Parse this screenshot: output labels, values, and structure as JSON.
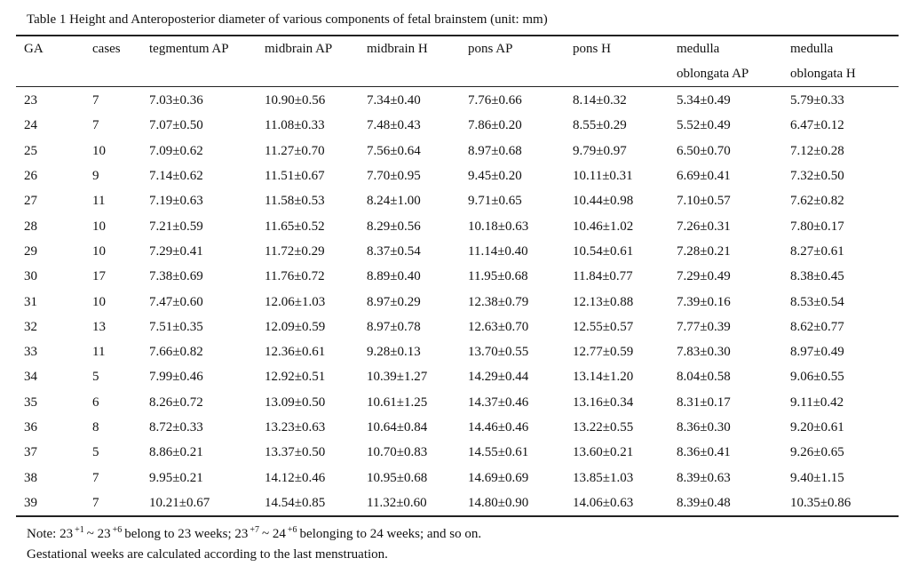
{
  "title": "Table 1 Height and Anteroposterior diameter of various components of fetal brainstem (unit: mm)",
  "table": {
    "headers": [
      "GA",
      "cases",
      "tegmentum AP",
      "midbrain AP",
      "midbrain H",
      "pons AP",
      "pons H",
      "medulla oblongata AP",
      "medulla oblongata H"
    ],
    "rows": [
      [
        23,
        7,
        "7.03±0.36",
        "10.90±0.56",
        "7.34±0.40",
        "7.76±0.66",
        "8.14±0.32",
        "5.34±0.49",
        "5.79±0.33"
      ],
      [
        24,
        7,
        "7.07±0.50",
        "11.08±0.33",
        "7.48±0.43",
        "7.86±0.20",
        "8.55±0.29",
        "5.52±0.49",
        "6.47±0.12"
      ],
      [
        25,
        10,
        "7.09±0.62",
        "11.27±0.70",
        "7.56±0.64",
        "8.97±0.68",
        "9.79±0.97",
        "6.50±0.70",
        "7.12±0.28"
      ],
      [
        26,
        9,
        "7.14±0.62",
        "11.51±0.67",
        "7.70±0.95",
        "9.45±0.20",
        "10.11±0.31",
        "6.69±0.41",
        "7.32±0.50"
      ],
      [
        27,
        11,
        "7.19±0.63",
        "11.58±0.53",
        "8.24±1.00",
        "9.71±0.65",
        "10.44±0.98",
        "7.10±0.57",
        "7.62±0.82"
      ],
      [
        28,
        10,
        "7.21±0.59",
        "11.65±0.52",
        "8.29±0.56",
        "10.18±0.63",
        "10.46±1.02",
        "7.26±0.31",
        "7.80±0.17"
      ],
      [
        29,
        10,
        "7.29±0.41",
        "11.72±0.29",
        "8.37±0.54",
        "11.14±0.40",
        "10.54±0.61",
        "7.28±0.21",
        "8.27±0.61"
      ],
      [
        30,
        17,
        "7.38±0.69",
        "11.76±0.72",
        "8.89±0.40",
        "11.95±0.68",
        "11.84±0.77",
        "7.29±0.49",
        "8.38±0.45"
      ],
      [
        31,
        10,
        "7.47±0.60",
        "12.06±1.03",
        "8.97±0.29",
        "12.38±0.79",
        "12.13±0.88",
        "7.39±0.16",
        "8.53±0.54"
      ],
      [
        32,
        13,
        "7.51±0.35",
        "12.09±0.59",
        "8.97±0.78",
        "12.63±0.70",
        "12.55±0.57",
        "7.77±0.39",
        "8.62±0.77"
      ],
      [
        33,
        11,
        "7.66±0.82",
        "12.36±0.61",
        "9.28±0.13",
        "13.70±0.55",
        "12.77±0.59",
        "7.83±0.30",
        "8.97±0.49"
      ],
      [
        34,
        5,
        "7.99±0.46",
        "12.92±0.51",
        "10.39±1.27",
        "14.29±0.44",
        "13.14±1.20",
        "8.04±0.58",
        "9.06±0.55"
      ],
      [
        35,
        6,
        "8.26±0.72",
        "13.09±0.50",
        "10.61±1.25",
        "14.37±0.46",
        "13.16±0.34",
        "8.31±0.17",
        "9.11±0.42"
      ],
      [
        36,
        8,
        "8.72±0.33",
        "13.23±0.63",
        "10.64±0.84",
        "14.46±0.46",
        "13.22±0.55",
        "8.36±0.30",
        "9.20±0.61"
      ],
      [
        37,
        5,
        "8.86±0.21",
        "13.37±0.50",
        "10.70±0.83",
        "14.55±0.61",
        "13.60±0.21",
        "8.36±0.41",
        "9.26±0.65"
      ],
      [
        38,
        7,
        "9.95±0.21",
        "14.12±0.46",
        "10.95±0.68",
        "14.69±0.69",
        "13.85±1.03",
        "8.39±0.63",
        "9.40±1.15"
      ],
      [
        39,
        7,
        "10.21±0.67",
        "14.54±0.85",
        "11.32±0.60",
        "14.80±0.90",
        "14.06±0.63",
        "8.39±0.48",
        "10.35±0.86"
      ]
    ]
  },
  "note": [
    {
      "text": "Note: 23"
    },
    {
      "sup": "+1"
    },
    {
      "text": "~ 23"
    },
    {
      "sup": "+6"
    },
    {
      "text": "belong to 23 weeks; 23"
    },
    {
      "sup": "+7"
    },
    {
      "text": "~ 24"
    },
    {
      "sup": "+6"
    },
    {
      "text": "belonging to 24 weeks; and so on."
    }
  ],
  "footnote": "Gestational weeks are calculated according to the last menstruation."
}
